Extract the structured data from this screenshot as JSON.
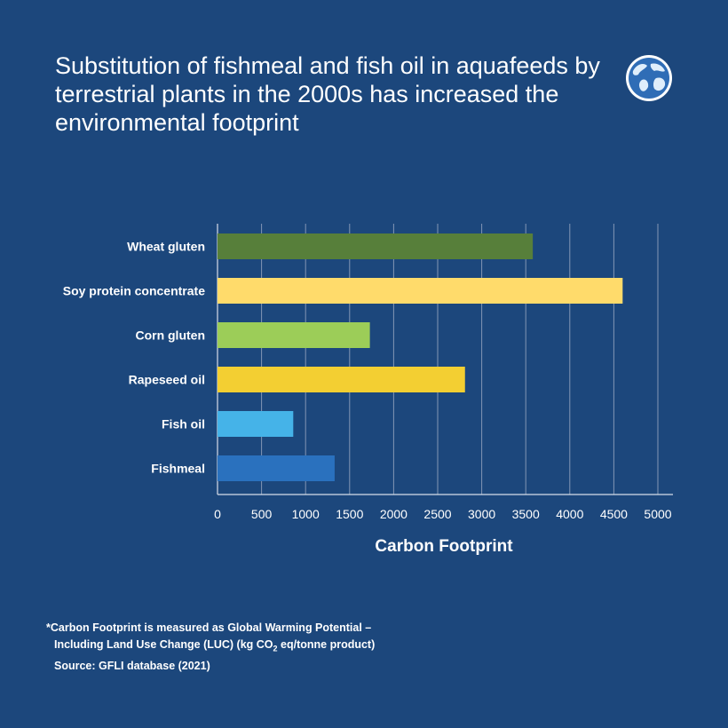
{
  "title": "Substitution of fishmeal and fish oil in aquafeeds by terrestrial plants in the 2000s has increased the environmental footprint",
  "icon": "globe-icon",
  "chart_data": {
    "type": "bar",
    "orientation": "horizontal",
    "categories": [
      "Wheat gluten",
      "Soy protein concentrate",
      "Corn gluten",
      "Rapeseed oil",
      "Fish oil",
      "Fishmeal"
    ],
    "values": [
      3580,
      4600,
      1730,
      2810,
      860,
      1330
    ],
    "colors": [
      "#577f3a",
      "#ffdb6b",
      "#9ccd58",
      "#f3cf32",
      "#45b3e8",
      "#2a71be"
    ],
    "xticks": [
      0,
      500,
      1000,
      1500,
      2000,
      2500,
      3000,
      3500,
      4000,
      4500,
      5000
    ],
    "xlim": [
      0,
      5000
    ],
    "xlabel": "Carbon Footprint",
    "grid": "vertical"
  },
  "footnote": {
    "line1": "*Carbon Footprint is measured as Global Warming Potential –",
    "line2_pre": "Including Land Use Change (LUC) (kg CO",
    "line2_sub": "2",
    "line2_post": " eq/tonne product)",
    "line3": "Source: GFLI database (2021)"
  }
}
